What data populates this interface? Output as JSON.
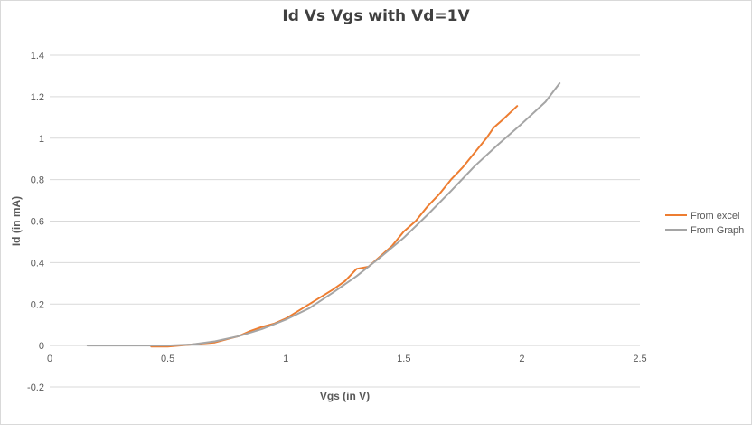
{
  "chart_data": {
    "type": "line",
    "title": "Id Vs Vgs with Vd=1V",
    "xlabel": "Vgs (in V)",
    "ylabel": "Id (in mA)",
    "xlim": [
      0,
      2.5
    ],
    "ylim": [
      -0.2,
      1.4
    ],
    "x_ticks": [
      "0",
      "0.5",
      "1",
      "1.5",
      "2",
      "2.5"
    ],
    "y_ticks": [
      "-0.2",
      "0",
      "0.2",
      "0.4",
      "0.6",
      "0.8",
      "1",
      "1.2",
      "1.4"
    ],
    "grid": "horizontal",
    "legend_position": "right",
    "series": [
      {
        "name": "From excel",
        "color": "#ed7d31",
        "x": [
          0.43,
          0.5,
          0.55,
          0.6,
          0.65,
          0.7,
          0.75,
          0.8,
          0.85,
          0.9,
          0.95,
          1.0,
          1.05,
          1.1,
          1.15,
          1.2,
          1.25,
          1.3,
          1.35,
          1.4,
          1.45,
          1.5,
          1.55,
          1.6,
          1.65,
          1.7,
          1.75,
          1.8,
          1.85,
          1.88,
          1.92,
          1.98
        ],
        "y": [
          -0.005,
          -0.005,
          0.0,
          0.005,
          0.01,
          0.015,
          0.03,
          0.045,
          0.07,
          0.09,
          0.105,
          0.13,
          0.165,
          0.2,
          0.235,
          0.27,
          0.31,
          0.37,
          0.38,
          0.43,
          0.48,
          0.55,
          0.6,
          0.67,
          0.73,
          0.8,
          0.86,
          0.93,
          1.0,
          1.05,
          1.09,
          1.155
        ]
      },
      {
        "name": "From Graph",
        "color": "#a5a5a5",
        "x": [
          0.16,
          0.3,
          0.4,
          0.5,
          0.6,
          0.7,
          0.8,
          0.9,
          1.0,
          1.1,
          1.2,
          1.3,
          1.4,
          1.5,
          1.6,
          1.7,
          1.8,
          1.9,
          2.0,
          2.1,
          2.16
        ],
        "y": [
          0.0,
          0.0,
          0.0,
          0.0,
          0.005,
          0.02,
          0.045,
          0.08,
          0.125,
          0.18,
          0.255,
          0.335,
          0.425,
          0.52,
          0.63,
          0.745,
          0.865,
          0.97,
          1.07,
          1.175,
          1.265
        ]
      }
    ]
  }
}
